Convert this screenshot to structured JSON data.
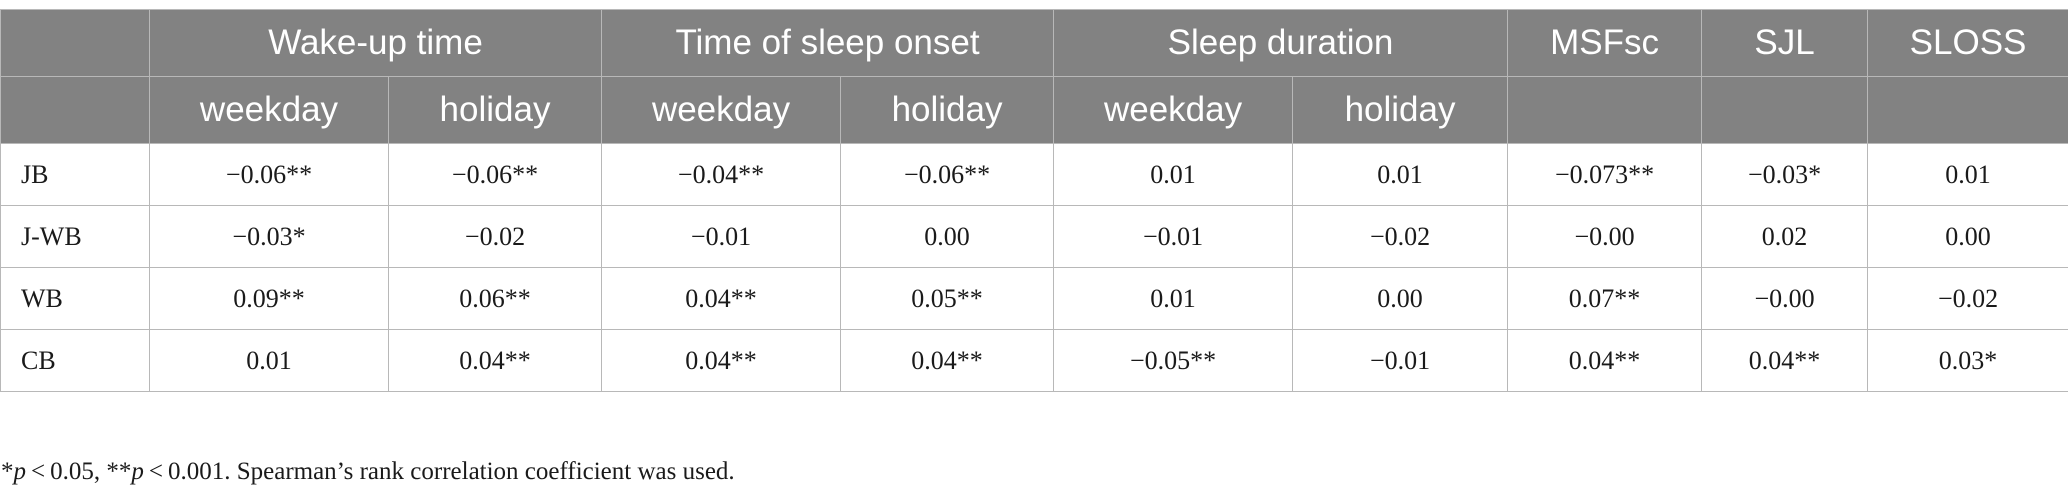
{
  "header": {
    "groups": {
      "wake_up_time": "Wake-up time",
      "sleep_onset": "Time of sleep onset",
      "sleep_duration": "Sleep duration",
      "msfsc": "MSFsc",
      "sjl": "SJL",
      "sloss": "SLOSS"
    },
    "sub": {
      "weekday": "weekday",
      "holiday": "holiday"
    }
  },
  "rows": [
    {
      "label": "JB",
      "values": [
        "−0.06**",
        "−0.06**",
        "−0.04**",
        "−0.06**",
        "0.01",
        "0.01",
        "−0.073**",
        "−0.03*",
        "0.01"
      ]
    },
    {
      "label": "J-WB",
      "values": [
        "−0.03*",
        "−0.02",
        "−0.01",
        "0.00",
        "−0.01",
        "−0.02",
        "−0.00",
        "0.02",
        "0.00"
      ]
    },
    {
      "label": "WB",
      "values": [
        "0.09**",
        "0.06**",
        "0.04**",
        "0.05**",
        "0.01",
        "0.00",
        "0.07**",
        "−0.00",
        "−0.02"
      ]
    },
    {
      "label": "CB",
      "values": [
        "0.01",
        "0.04**",
        "0.04**",
        "0.04**",
        "−0.05**",
        "−0.01",
        "0.04**",
        "0.04**",
        "0.03*"
      ]
    }
  ],
  "footnote": {
    "sig1_mark": "*",
    "p_symbol": "p",
    "sig1_threshold": " < 0.05, ",
    "sig2_mark": "**",
    "sig2_threshold": " < 0.001. ",
    "text": "Spearman’s rank correlation coefficient was used."
  }
}
